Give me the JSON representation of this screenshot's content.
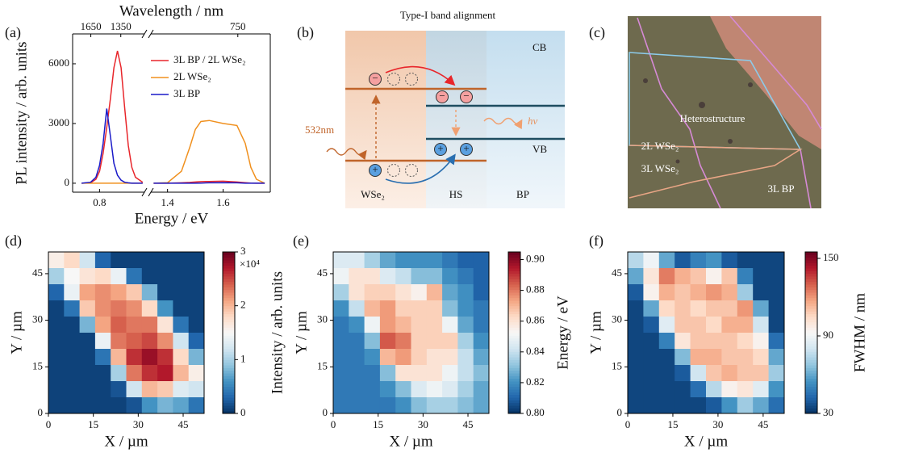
{
  "panel_labels": [
    "(a)",
    "(b)",
    "(c)",
    "(d)",
    "(e)",
    "(f)"
  ],
  "chart_data": [
    {
      "type": "line",
      "x_label": "Energy / eV",
      "y_label": "PL intensity / arb. units",
      "x2_label": "Wavelength / nm",
      "xsegments": [
        [
          0.65,
          1.05
        ],
        [
          1.34,
          1.77
        ]
      ],
      "xticks": [
        0.8,
        1.4,
        1.6
      ],
      "x2ticks": [
        1650,
        1350,
        750
      ],
      "ylim": [
        -450,
        7500
      ],
      "yticks": [
        0,
        3000,
        6000
      ],
      "legend": "upper right",
      "x": [
        0.7,
        0.75,
        0.78,
        0.8,
        0.82,
        0.84,
        0.86,
        0.88,
        0.9,
        0.92,
        0.94,
        0.96,
        0.98,
        1.0,
        1.04,
        1.35,
        1.4,
        1.45,
        1.48,
        1.5,
        1.52,
        1.55,
        1.6,
        1.65,
        1.68,
        1.7,
        1.72,
        1.75
      ],
      "series": [
        {
          "name": "3L BP / 2L WSe₂",
          "color": "#e8262b",
          "values": [
            0,
            20,
            200,
            600,
            1500,
            2800,
            4200,
            5800,
            6650,
            5800,
            3800,
            1900,
            800,
            300,
            50,
            0,
            0,
            20,
            40,
            60,
            80,
            90,
            100,
            60,
            30,
            10,
            0,
            0
          ]
        },
        {
          "name": "2L WSe₂",
          "color": "#f0901e",
          "values": [
            0,
            0,
            0,
            0,
            0,
            0,
            0,
            0,
            0,
            0,
            0,
            0,
            0,
            0,
            0,
            0,
            30,
            600,
            1800,
            2700,
            3100,
            3150,
            3000,
            2900,
            2000,
            800,
            200,
            0
          ]
        },
        {
          "name": "3L BP",
          "color": "#1a1ac8",
          "values": [
            0,
            50,
            300,
            900,
            2000,
            3750,
            2400,
            1000,
            400,
            150,
            50,
            20,
            0,
            0,
            0,
            0,
            0,
            0,
            0,
            0,
            10,
            20,
            30,
            20,
            0,
            0,
            0,
            0
          ]
        }
      ]
    },
    {
      "type": "heatmap",
      "x_label": "X / µm",
      "y_label": "Y / µm",
      "xlim": [
        0,
        52
      ],
      "ylim": [
        0,
        52
      ],
      "xticks": [
        0,
        15,
        30,
        45
      ],
      "yticks": [
        0,
        15,
        30,
        45
      ],
      "colormap": "RdBu_r",
      "zlim": [
        0,
        3
      ],
      "zticks": [
        0,
        1,
        2,
        3
      ],
      "colorbar_label": "Intensity / arb. units",
      "colorbar_note": "×10⁴",
      "z": [
        [
          1.6,
          1.8,
          1.2,
          0.3,
          0.1,
          0.1,
          0.1,
          0.1,
          0.1,
          0.1
        ],
        [
          1.0,
          1.5,
          1.7,
          1.8,
          1.4,
          0.4,
          0.1,
          0.1,
          0.1,
          0.1
        ],
        [
          0.3,
          1.4,
          2.1,
          2.2,
          2.1,
          1.9,
          0.8,
          0.1,
          0.1,
          0.1
        ],
        [
          0.1,
          0.4,
          1.9,
          2.2,
          2.3,
          2.2,
          1.8,
          0.6,
          0.1,
          0.1
        ],
        [
          0.1,
          0.1,
          0.8,
          2.1,
          2.4,
          2.3,
          2.3,
          1.7,
          0.4,
          0.1
        ],
        [
          0.1,
          0.1,
          0.1,
          1.4,
          2.3,
          2.4,
          2.5,
          2.2,
          1.2,
          0.3
        ],
        [
          0.1,
          0.1,
          0.1,
          0.4,
          2.0,
          2.6,
          2.8,
          2.6,
          1.8,
          0.8
        ],
        [
          0.1,
          0.1,
          0.1,
          0.1,
          1.0,
          2.3,
          2.6,
          2.7,
          2.0,
          1.6
        ],
        [
          0.1,
          0.1,
          0.1,
          0.1,
          0.2,
          1.2,
          2.0,
          1.9,
          1.3,
          1.2
        ],
        [
          0.1,
          0.1,
          0.1,
          0.1,
          0.1,
          0.2,
          0.6,
          0.8,
          0.7,
          0.4
        ]
      ]
    },
    {
      "type": "heatmap",
      "x_label": "X / µm",
      "y_label": "Y / µm",
      "xlim": [
        0,
        52
      ],
      "ylim": [
        0,
        52
      ],
      "xticks": [
        0,
        15,
        30,
        45
      ],
      "yticks": [
        0,
        15,
        30,
        45
      ],
      "colormap": "RdBu_r",
      "zlim": [
        0.8,
        0.905
      ],
      "zticks": [
        {
          "value": 0.8,
          "label": "0.80"
        },
        0.82,
        0.84,
        0.86,
        0.88,
        {
          "value": 0.9,
          "label": "0.90"
        }
      ],
      "colorbar_label": "Energy / eV",
      "z": [
        [
          0.845,
          0.845,
          0.835,
          0.825,
          0.82,
          0.82,
          0.82,
          0.815,
          0.81,
          0.81
        ],
        [
          0.85,
          0.86,
          0.86,
          0.845,
          0.84,
          0.83,
          0.83,
          0.82,
          0.815,
          0.81
        ],
        [
          0.835,
          0.86,
          0.865,
          0.865,
          0.86,
          0.855,
          0.87,
          0.825,
          0.82,
          0.81
        ],
        [
          0.82,
          0.84,
          0.87,
          0.875,
          0.865,
          0.865,
          0.865,
          0.83,
          0.82,
          0.815
        ],
        [
          0.815,
          0.82,
          0.85,
          0.875,
          0.87,
          0.865,
          0.865,
          0.85,
          0.825,
          0.815
        ],
        [
          0.815,
          0.815,
          0.83,
          0.885,
          0.88,
          0.865,
          0.865,
          0.865,
          0.835,
          0.82
        ],
        [
          0.815,
          0.815,
          0.82,
          0.87,
          0.875,
          0.865,
          0.86,
          0.86,
          0.84,
          0.825
        ],
        [
          0.815,
          0.815,
          0.815,
          0.83,
          0.86,
          0.86,
          0.86,
          0.85,
          0.84,
          0.83
        ],
        [
          0.815,
          0.815,
          0.815,
          0.82,
          0.83,
          0.845,
          0.85,
          0.845,
          0.835,
          0.825
        ],
        [
          0.815,
          0.815,
          0.815,
          0.815,
          0.82,
          0.83,
          0.835,
          0.835,
          0.83,
          0.825
        ]
      ]
    },
    {
      "type": "heatmap",
      "x_label": "X / µm",
      "y_label": "Y / µm",
      "xlim": [
        0,
        52
      ],
      "ylim": [
        0,
        52
      ],
      "xticks": [
        0,
        15,
        30,
        45
      ],
      "yticks": [
        0,
        15,
        30,
        45
      ],
      "colormap": "RdBu_r",
      "zlim": [
        30,
        155
      ],
      "zticks": [
        30,
        90,
        150
      ],
      "colorbar_label": "FWHM / nm",
      "z": [
        [
          75,
          90,
          60,
          40,
          50,
          55,
          40,
          35,
          35,
          35
        ],
        [
          60,
          100,
          125,
          115,
          110,
          95,
          110,
          50,
          35,
          35
        ],
        [
          40,
          95,
          115,
          110,
          115,
          120,
          115,
          70,
          35,
          35
        ],
        [
          35,
          60,
          105,
          110,
          105,
          110,
          110,
          120,
          60,
          35
        ],
        [
          35,
          40,
          85,
          110,
          110,
          105,
          115,
          115,
          80,
          35
        ],
        [
          35,
          35,
          50,
          100,
          110,
          110,
          110,
          105,
          95,
          45
        ],
        [
          35,
          35,
          35,
          65,
          115,
          115,
          110,
          110,
          105,
          60
        ],
        [
          35,
          35,
          35,
          40,
          80,
          110,
          115,
          110,
          110,
          70
        ],
        [
          35,
          35,
          35,
          35,
          45,
          75,
          95,
          100,
          85,
          55
        ],
        [
          35,
          35,
          35,
          35,
          35,
          40,
          55,
          70,
          60,
          45
        ]
      ]
    }
  ],
  "band_diagram": {
    "title": "Type-I band alignment",
    "cb": "CB",
    "vb": "VB",
    "excitation": "532nm",
    "emission": "hν",
    "regions": [
      "WSe₂",
      "HS",
      "BP"
    ],
    "electron": "−",
    "hole": "+"
  },
  "micrograph": {
    "labels": [
      "Heterostructure",
      "2L WSe₂",
      "3L WSe₂",
      "3L BP"
    ]
  }
}
